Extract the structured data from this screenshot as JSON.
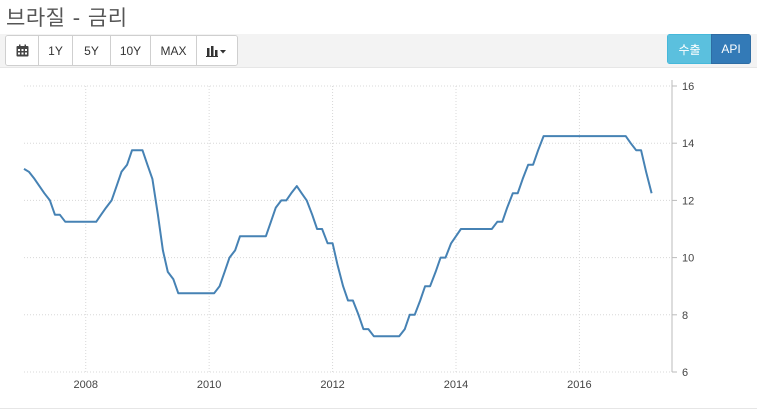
{
  "page": {
    "title": "브라질 - 금리"
  },
  "toolbar": {
    "calendar_icon": "calendar-icon",
    "buttons": [
      "1Y",
      "5Y",
      "10Y",
      "MAX"
    ],
    "chart_type_icon": "bar-chart-icon",
    "chart_type_caret": "caret-down-icon",
    "export_label": "수출",
    "api_label": "API"
  },
  "colors": {
    "line": "#4682b4",
    "export_bg": "#5bc0de",
    "api_bg": "#337ab7",
    "grid": "#d8d8d8"
  },
  "chart_data": {
    "type": "line",
    "title": "",
    "xlabel": "",
    "ylabel": "",
    "xlim": [
      2007.0,
      2017.5
    ],
    "ylim": [
      6,
      16
    ],
    "x_ticks": [
      "2008",
      "2010",
      "2012",
      "2014",
      "2016"
    ],
    "y_ticks": [
      "6",
      "8",
      "10",
      "12",
      "14",
      "16"
    ],
    "y_axis_position": "right",
    "grid": true,
    "series": [
      {
        "x": [
          2007.0,
          2007.08,
          2007.17,
          2007.25,
          2007.33,
          2007.42,
          2007.5,
          2007.58,
          2007.67,
          2007.75,
          2007.83,
          2007.92,
          2008.0,
          2008.08,
          2008.17,
          2008.25,
          2008.33,
          2008.42,
          2008.5,
          2008.58,
          2008.67,
          2008.75,
          2008.83,
          2008.92,
          2009.0,
          2009.08,
          2009.17,
          2009.25,
          2009.33,
          2009.42,
          2009.5,
          2009.58,
          2009.67,
          2009.75,
          2009.83,
          2009.92,
          2010.0,
          2010.08,
          2010.17,
          2010.25,
          2010.33,
          2010.42,
          2010.5,
          2010.58,
          2010.67,
          2010.75,
          2010.83,
          2010.92,
          2011.0,
          2011.08,
          2011.17,
          2011.25,
          2011.33,
          2011.42,
          2011.5,
          2011.58,
          2011.67,
          2011.75,
          2011.83,
          2011.92,
          2012.0,
          2012.08,
          2012.17,
          2012.25,
          2012.33,
          2012.42,
          2012.5,
          2012.58,
          2012.67,
          2012.75,
          2012.83,
          2012.92,
          2013.0,
          2013.08,
          2013.17,
          2013.25,
          2013.33,
          2013.42,
          2013.5,
          2013.58,
          2013.67,
          2013.75,
          2013.83,
          2013.92,
          2014.0,
          2014.08,
          2014.17,
          2014.25,
          2014.33,
          2014.42,
          2014.5,
          2014.58,
          2014.67,
          2014.75,
          2014.83,
          2014.92,
          2015.0,
          2015.08,
          2015.17,
          2015.25,
          2015.33,
          2015.42,
          2015.5,
          2015.58,
          2015.67,
          2015.75,
          2015.83,
          2015.92,
          2016.0,
          2016.08,
          2016.17,
          2016.25,
          2016.33,
          2016.42,
          2016.5,
          2016.58,
          2016.67,
          2016.75,
          2016.83,
          2016.92,
          2017.0,
          2017.08,
          2017.17
        ],
        "values": [
          13.1,
          13.0,
          12.75,
          12.5,
          12.25,
          12.0,
          11.5,
          11.5,
          11.25,
          11.25,
          11.25,
          11.25,
          11.25,
          11.25,
          11.25,
          11.5,
          11.75,
          12.0,
          12.5,
          13.0,
          13.25,
          13.75,
          13.75,
          13.75,
          13.25,
          12.75,
          11.5,
          10.25,
          9.5,
          9.25,
          8.75,
          8.75,
          8.75,
          8.75,
          8.75,
          8.75,
          8.75,
          8.75,
          9.0,
          9.5,
          10.0,
          10.25,
          10.75,
          10.75,
          10.75,
          10.75,
          10.75,
          10.75,
          11.25,
          11.75,
          12.0,
          12.0,
          12.25,
          12.5,
          12.25,
          12.0,
          11.5,
          11.0,
          11.0,
          10.5,
          10.5,
          9.75,
          9.0,
          8.5,
          8.5,
          8.0,
          7.5,
          7.5,
          7.25,
          7.25,
          7.25,
          7.25,
          7.25,
          7.25,
          7.5,
          8.0,
          8.0,
          8.5,
          9.0,
          9.0,
          9.5,
          10.0,
          10.0,
          10.5,
          10.75,
          11.0,
          11.0,
          11.0,
          11.0,
          11.0,
          11.0,
          11.0,
          11.25,
          11.25,
          11.75,
          12.25,
          12.25,
          12.75,
          13.25,
          13.25,
          13.75,
          14.25,
          14.25,
          14.25,
          14.25,
          14.25,
          14.25,
          14.25,
          14.25,
          14.25,
          14.25,
          14.25,
          14.25,
          14.25,
          14.25,
          14.25,
          14.25,
          14.25,
          14.0,
          13.75,
          13.75,
          13.0,
          12.25
        ]
      }
    ]
  }
}
